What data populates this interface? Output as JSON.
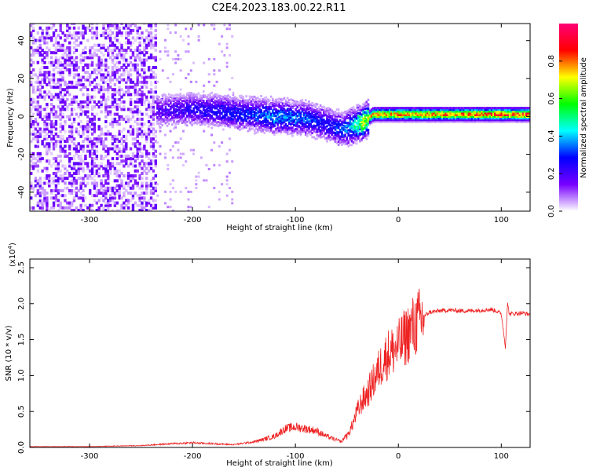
{
  "figure": {
    "title": "C2E4.2023.183.00.22.R11"
  },
  "chart_data": [
    {
      "type": "heatmap",
      "xlabel": "Height of straight line (km)",
      "ylabel": "Frequency (Hz)",
      "xlim": [
        -358,
        128
      ],
      "ylim": [
        -50,
        49
      ],
      "xticks": [
        -300,
        -200,
        -100,
        0,
        100
      ],
      "yticks": [
        -40,
        -20,
        0,
        20,
        40
      ],
      "colorbar": {
        "label": "Normalized spectral amplitude",
        "range": [
          0.0,
          1.0
        ],
        "ticks": [
          0.0,
          0.2,
          0.4,
          0.6,
          0.8
        ],
        "colormap": [
          "#ffffff",
          "#7700ff",
          "#0000ff",
          "#00ffff",
          "#00ff00",
          "#ffff00",
          "#ff0000",
          "#ff0077"
        ]
      },
      "ridge": {
        "x": [
          -235,
          -200,
          -160,
          -120,
          -90,
          -70,
          -55,
          -45,
          -35,
          -25,
          0,
          50,
          100,
          128
        ],
        "freq": [
          3,
          4,
          2,
          0,
          -1,
          -4,
          -7,
          -5,
          -3,
          1,
          1,
          1,
          1,
          1
        ],
        "amplitude": [
          0.2,
          0.25,
          0.3,
          0.4,
          0.35,
          0.3,
          0.35,
          0.45,
          0.7,
          0.8,
          0.85,
          0.85,
          0.9,
          0.9
        ]
      },
      "noise_region_x": [
        -358,
        -235
      ]
    },
    {
      "type": "line",
      "xlabel": "Height of straight line (km)",
      "ylabel": "SNR (10 * v/v)",
      "y_multiplier": "(x10",
      "y_multiplier_exp": "4",
      "xlim": [
        -358,
        128
      ],
      "ylim": [
        0,
        2.62
      ],
      "xticks": [
        -300,
        -200,
        -100,
        0,
        100
      ],
      "yticks": [
        0.0,
        0.5,
        1.0,
        1.5,
        2.0,
        2.5
      ],
      "line_color": "#ee2222",
      "series": [
        {
          "x": [
            -358,
            -300,
            -250,
            -220,
            -200,
            -180,
            -160,
            -140,
            -120,
            -110,
            -100,
            -90,
            -80,
            -70,
            -60,
            -55,
            -50,
            -45,
            -40,
            -35,
            -30,
            -25,
            -20,
            -15,
            -10,
            -5,
            0,
            5,
            10,
            15,
            20,
            25,
            30,
            40,
            50,
            60,
            70,
            80,
            90,
            95,
            100,
            104,
            106,
            108,
            110,
            120,
            128
          ],
          "values": [
            0.01,
            0.01,
            0.02,
            0.04,
            0.05,
            0.04,
            0.03,
            0.06,
            0.12,
            0.2,
            0.22,
            0.2,
            0.18,
            0.12,
            0.08,
            0.06,
            0.15,
            0.3,
            0.5,
            0.65,
            0.75,
            0.9,
            1.05,
            1.2,
            1.3,
            1.35,
            1.4,
            1.5,
            1.6,
            1.68,
            1.75,
            1.82,
            1.88,
            1.9,
            1.91,
            1.9,
            1.9,
            1.91,
            1.92,
            1.9,
            1.86,
            1.4,
            2.0,
            1.85,
            1.86,
            1.87,
            1.85
          ]
        }
      ]
    }
  ]
}
